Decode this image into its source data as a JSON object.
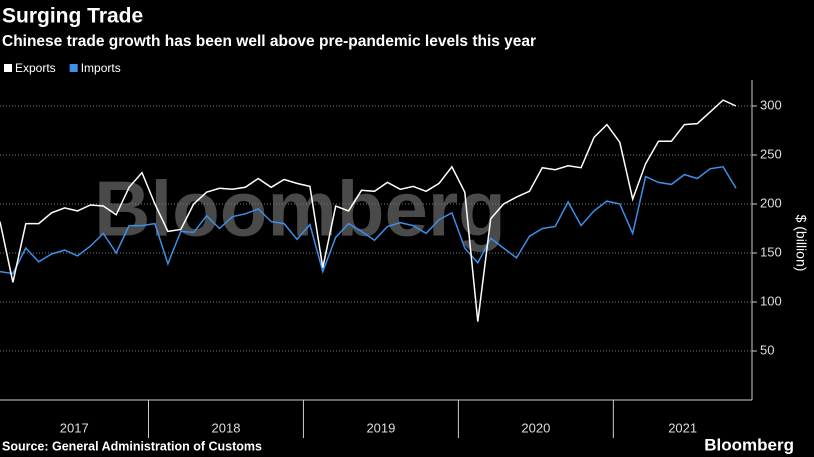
{
  "chart_data": {
    "type": "line",
    "title": "Surging Trade",
    "subtitle": "Chinese trade growth has been well above pre-pandemic levels this year",
    "y_label": "$ (billion)",
    "source": "Source: General Administration of Customs",
    "brand": "Bloomberg",
    "watermark": "Bloomberg",
    "year_labels": [
      "2017",
      "2018",
      "2019",
      "2020",
      "2021"
    ],
    "categories": [
      null,
      null,
      null,
      null,
      null,
      null,
      null,
      null,
      null,
      null,
      null,
      null,
      null,
      null,
      null,
      null,
      null,
      null,
      null,
      null,
      null,
      null,
      null,
      null,
      null,
      null,
      null,
      null,
      null,
      null,
      null,
      null,
      null,
      null,
      null,
      null,
      null,
      null,
      null,
      null,
      null,
      null,
      null,
      null,
      null,
      null,
      null,
      null,
      null,
      null,
      null,
      null,
      null,
      null,
      null,
      null,
      null,
      null
    ],
    "series": [
      {
        "name": "Exports",
        "color": "#ffffff",
        "values": [
          182,
          120,
          180,
          180,
          191,
          196,
          193,
          199,
          198,
          189,
          217,
          232,
          200,
          172,
          174,
          200,
          212,
          216,
          215,
          217,
          226,
          217,
          225,
          221,
          218,
          135,
          198,
          193,
          214,
          213,
          222,
          215,
          218,
          213,
          221,
          238,
          212,
          80,
          185,
          200,
          207,
          213,
          237,
          235,
          239,
          237,
          268,
          281,
          263,
          205,
          241,
          264,
          264,
          281,
          282,
          294,
          306,
          300
        ]
      },
      {
        "name": "Imports",
        "color": "#3d8fe8",
        "values": [
          131,
          129,
          155,
          141,
          149,
          153,
          147,
          157,
          170,
          150,
          178,
          178,
          180,
          139,
          172,
          171,
          188,
          175,
          187,
          190,
          195,
          182,
          180,
          164,
          179,
          131,
          166,
          180,
          172,
          163,
          177,
          181,
          178,
          170,
          184,
          191,
          155,
          140,
          165,
          155,
          145,
          167,
          175,
          177,
          202,
          178,
          193,
          203,
          200,
          170,
          228,
          222,
          220,
          230,
          226,
          236,
          238,
          216
        ]
      }
    ],
    "ylim": [
      0,
      320
    ],
    "yticks": [
      50,
      100,
      150,
      200,
      250,
      300
    ],
    "grid": true
  }
}
